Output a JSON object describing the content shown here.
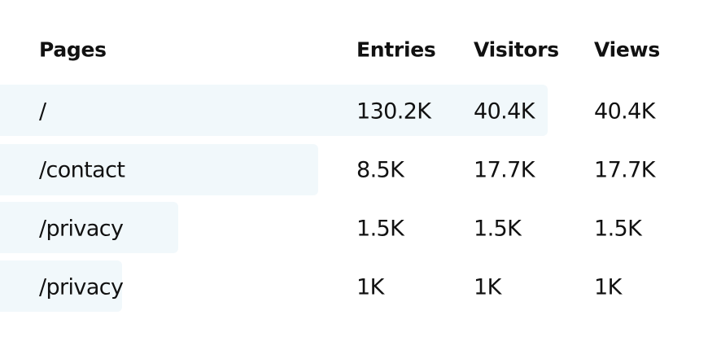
{
  "table": {
    "headers": [
      "Pages",
      "Entries",
      "Visitors",
      "Views"
    ],
    "rows": [
      [
        "/",
        "130.2K",
        "40.4K",
        "40.4K"
      ],
      [
        "/contact",
        "8.5K",
        "17.7K",
        "17.7K"
      ],
      [
        "/privacy",
        "1.5K",
        "1.5K",
        "1.5K"
      ],
      [
        "/privacy",
        "1K",
        "1K",
        "1K"
      ]
    ]
  }
}
